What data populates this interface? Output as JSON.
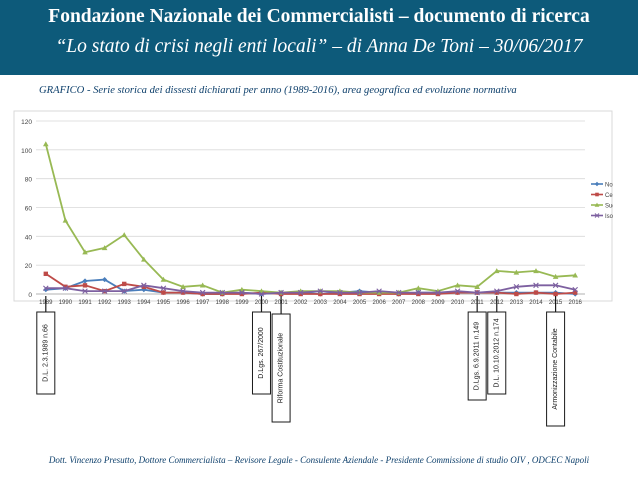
{
  "header": {
    "title": "Fondazione Nazionale dei Commercialisti – documento di ricerca",
    "subtitle": "“Lo stato di crisi negli enti locali” – di Anna De Toni – 30/06/2017"
  },
  "caption": "GRAFICO -  Serie storica dei dissesti dichiarati per anno (1989-2016), area geografica ed evoluzione normativa",
  "footer": "Dott. Vincenzo Presutto, Dottore Commercialista – Revisore Legale - Consulente Aziendale - Presidente Commissione di studio OIV , ODCEC Napoli",
  "colors": {
    "header_bg": "#0d5a7a",
    "nord": "#4a7ebb",
    "centro": "#be4b48",
    "sud": "#98b954",
    "isole": "#7d60a0"
  },
  "chart_data": {
    "type": "line",
    "x": [
      "1989",
      "1990",
      "1991",
      "1992",
      "1993",
      "1994",
      "1995",
      "1996",
      "1997",
      "1998",
      "1999",
      "2000",
      "2001",
      "2002",
      "2003",
      "2004",
      "2005",
      "2006",
      "2007",
      "2008",
      "2009",
      "2010",
      "2011",
      "2012",
      "2013",
      "2014",
      "2015",
      "2016"
    ],
    "ylim": [
      0,
      120
    ],
    "yticks": [
      0,
      20,
      40,
      60,
      80,
      100,
      120
    ],
    "grid": true,
    "legend_position": "right",
    "series": [
      {
        "name": "Nord",
        "color": "#4a7ebb",
        "marker": "diamond",
        "values": [
          3,
          4,
          9,
          10,
          2,
          3,
          1,
          1,
          0,
          0,
          1,
          0,
          1,
          1,
          0,
          1,
          2,
          1,
          0,
          1,
          1,
          1,
          1,
          1,
          1,
          1,
          1,
          0
        ]
      },
      {
        "name": "Centro",
        "color": "#be4b48",
        "marker": "square",
        "values": [
          14,
          5,
          6,
          2,
          7,
          5,
          1,
          1,
          0,
          0,
          0,
          1,
          0,
          0,
          0,
          0,
          0,
          0,
          0,
          0,
          0,
          1,
          1,
          1,
          0,
          1,
          0,
          1
        ]
      },
      {
        "name": "Sud",
        "color": "#98b954",
        "marker": "triangle",
        "values": [
          104,
          51,
          29,
          32,
          41,
          24,
          10,
          5,
          6,
          1,
          3,
          2,
          1,
          2,
          2,
          2,
          1,
          1,
          1,
          4,
          2,
          6,
          5,
          16,
          15,
          16,
          12,
          13
        ]
      },
      {
        "name": "Isole",
        "color": "#7d60a0",
        "marker": "cross",
        "values": [
          4,
          4,
          2,
          2,
          2,
          6,
          4,
          2,
          1,
          1,
          1,
          0,
          1,
          1,
          2,
          1,
          1,
          2,
          1,
          1,
          1,
          2,
          1,
          2,
          5,
          6,
          6,
          3
        ]
      }
    ],
    "annotations": [
      {
        "year": "1989",
        "label": "D.L. 2.3.1989 n.66"
      },
      {
        "year": "2000",
        "label": "D.Lgs. 267/2000"
      },
      {
        "year": "2001",
        "label": "Riforma Costituzionale"
      },
      {
        "year": "2011",
        "label": "D.Lgs. 6.9.2011 n.149"
      },
      {
        "year": "2012",
        "label": "D.L. 10.10.2012 n.174"
      },
      {
        "year": "2015",
        "label": "Armonizzazione Contabile"
      }
    ]
  }
}
